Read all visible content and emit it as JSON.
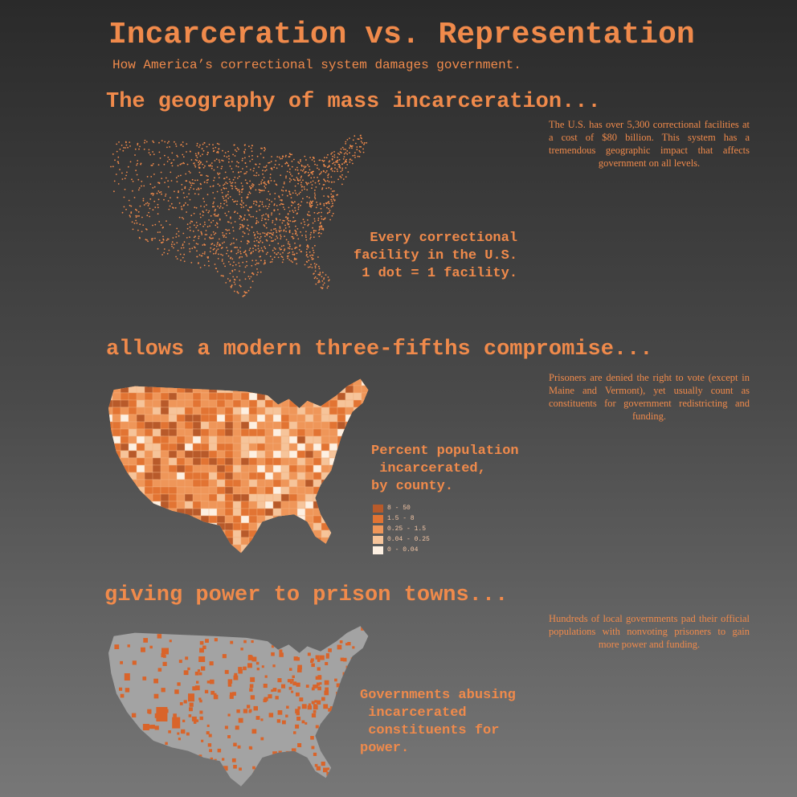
{
  "header": {
    "title": "Incarceration vs. Representation",
    "subtitle": "How America’s correctional system damages government."
  },
  "sections": [
    {
      "heading": "The geography of mass incarceration...",
      "description": "The U.S. has over 5,300 correctional facilities at a cost of $80 billion. This system has a tremendous geographic impact that affects government on all levels.",
      "caption": "Every correctional\nfacility in the U.S.\n1 dot = 1 facility."
    },
    {
      "heading": "allows a modern three-fifths compromise...",
      "description": "Prisoners are denied the right to vote (except in Maine and Vermont), yet usually count as constituents for government redistricting and funding.",
      "caption": "Percent population\n incarcerated,\nby county."
    },
    {
      "heading": "giving power to prison towns...",
      "description": "Hundreds of local governments pad their official populations with nonvoting prisoners to gain more power and funding.",
      "caption": "Governments abusing\n incarcerated\n constituents for\npower."
    }
  ],
  "legend": {
    "items": [
      {
        "label": "8 - 50",
        "color": "#b85a2a"
      },
      {
        "label": "1.5 - 8",
        "color": "#e27433"
      },
      {
        "label": "0.25 - 1.5",
        "color": "#ef9659"
      },
      {
        "label": "0.04 - 0.25",
        "color": "#f6c49a"
      },
      {
        "label": "0 - 0.04",
        "color": "#fdf0e2"
      }
    ]
  },
  "colors": {
    "accent": "#f08a4b",
    "map_gray": "#a3a3a3",
    "highlight": "#d9642a"
  }
}
